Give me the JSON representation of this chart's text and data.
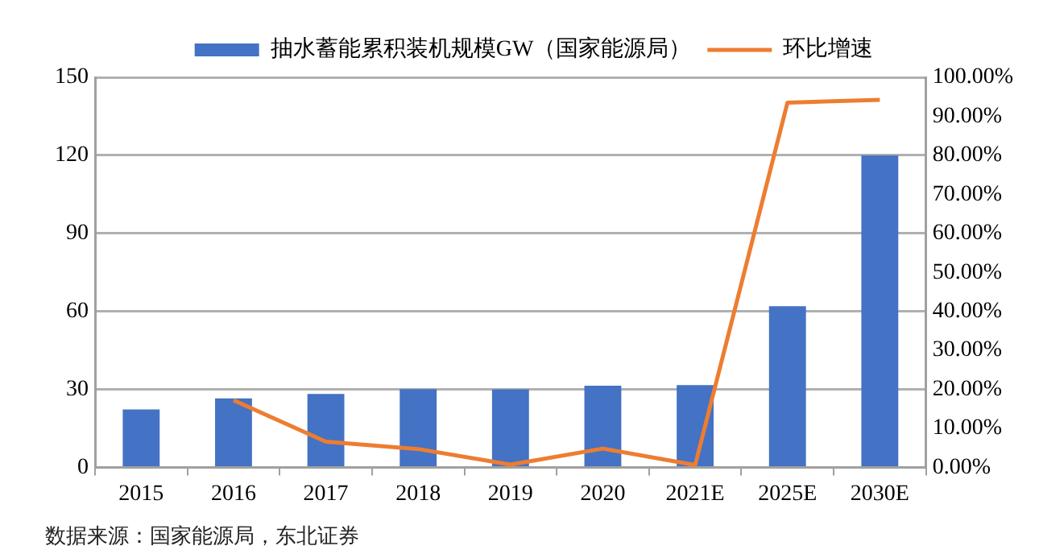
{
  "chart_data": {
    "type": "bar",
    "categories": [
      "2015",
      "2016",
      "2017",
      "2018",
      "2019",
      "2020",
      "2021E",
      "2025E",
      "2030E"
    ],
    "series": [
      {
        "name": "抽水蓄能累积装机规模GW（国家能源局）",
        "color": "#4472c4",
        "values": [
          22.3,
          26.5,
          28.2,
          30.1,
          30.0,
          31.4,
          31.6,
          62,
          120
        ]
      },
      {
        "name": "环比增速",
        "type": "line",
        "axis": "y2",
        "color": "#ed7d31",
        "marker": "none",
        "values": [
          null,
          17.2,
          6.6,
          4.7,
          0.7,
          4.8,
          0.6,
          93.5,
          94.2
        ]
      }
    ],
    "ylim": [
      0,
      150
    ],
    "yticks": [
      0,
      30,
      60,
      90,
      120,
      150
    ],
    "y2lim": [
      0,
      100
    ],
    "y2ticks": [
      {
        "value": 0,
        "label": "0.00%"
      },
      {
        "value": 10,
        "label": "10.00%"
      },
      {
        "value": 20,
        "label": "20.00%"
      },
      {
        "value": 30,
        "label": "30.00%"
      },
      {
        "value": 40,
        "label": "40.00%"
      },
      {
        "value": 50,
        "label": "50.00%"
      },
      {
        "value": 60,
        "label": "60.00%"
      },
      {
        "value": 70,
        "label": "70.00%"
      },
      {
        "value": 80,
        "label": "80.00%"
      },
      {
        "value": 90,
        "label": "90.00%"
      },
      {
        "value": 100,
        "label": "100.00%"
      }
    ],
    "grid": "y",
    "legend": "top",
    "annotations": [
      "数据来源：国家能源局，东北证券"
    ]
  }
}
